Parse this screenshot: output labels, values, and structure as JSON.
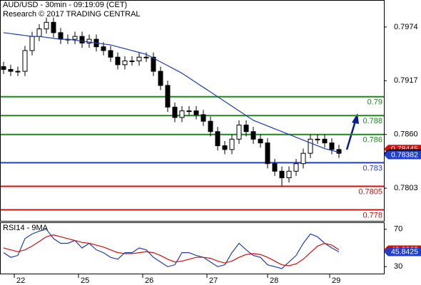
{
  "chart_data": [
    {
      "type": "candlestick",
      "title": "AUD/USD - 30min - 09:19:09 (CET)",
      "subtitle": "Research © 2017 TRADING CENTRAL",
      "x": [
        0,
        1,
        2,
        3,
        4,
        5,
        6,
        7,
        8,
        9,
        10,
        11,
        12,
        13,
        14,
        15,
        16,
        17,
        18,
        19,
        20,
        21,
        22,
        23,
        24,
        25,
        26,
        27,
        28,
        29,
        30,
        31,
        32,
        33,
        34,
        35,
        36,
        37,
        38,
        39,
        40,
        41,
        42,
        43,
        44,
        45,
        46,
        47
      ],
      "open": [
        0.7932,
        0.7929,
        0.7927,
        0.7927,
        0.7949,
        0.7964,
        0.7972,
        0.7979,
        0.7968,
        0.7961,
        0.7961,
        0.7964,
        0.7957,
        0.7961,
        0.7953,
        0.7949,
        0.7942,
        0.7934,
        0.7938,
        0.7938,
        0.7942,
        0.7942,
        0.7927,
        0.7912,
        0.7889,
        0.7878,
        0.7885,
        0.7885,
        0.7881,
        0.7874,
        0.7863,
        0.7848,
        0.7844,
        0.7855,
        0.787,
        0.7863,
        0.7855,
        0.7851,
        0.7829,
        0.7821,
        0.7814,
        0.7821,
        0.7829,
        0.784,
        0.7855,
        0.7855,
        0.7851,
        0.7844
      ],
      "high": [
        0.7937,
        0.7934,
        0.7932,
        0.7954,
        0.7969,
        0.7977,
        0.7984,
        0.7984,
        0.7973,
        0.7966,
        0.7969,
        0.7969,
        0.7966,
        0.7966,
        0.7958,
        0.7954,
        0.7947,
        0.7943,
        0.7943,
        0.7947,
        0.7947,
        0.7947,
        0.7932,
        0.7917,
        0.7894,
        0.789,
        0.789,
        0.789,
        0.7886,
        0.7879,
        0.7868,
        0.7853,
        0.786,
        0.7875,
        0.7875,
        0.7868,
        0.786,
        0.7856,
        0.7834,
        0.7826,
        0.7826,
        0.7834,
        0.7845,
        0.786,
        0.786,
        0.786,
        0.7856,
        0.7849
      ],
      "low": [
        0.7924,
        0.7922,
        0.7922,
        0.7922,
        0.7944,
        0.7959,
        0.7967,
        0.7963,
        0.7956,
        0.7956,
        0.7956,
        0.7952,
        0.7952,
        0.7948,
        0.7944,
        0.7937,
        0.7929,
        0.7929,
        0.7933,
        0.7933,
        0.7937,
        0.7922,
        0.7907,
        0.7884,
        0.7873,
        0.7873,
        0.788,
        0.7876,
        0.7869,
        0.7858,
        0.7843,
        0.7839,
        0.7839,
        0.785,
        0.7858,
        0.785,
        0.7846,
        0.7824,
        0.7816,
        0.7805,
        0.7809,
        0.7816,
        0.7824,
        0.7835,
        0.785,
        0.7846,
        0.7839,
        0.7835
      ],
      "close": [
        0.7929,
        0.7927,
        0.7927,
        0.7949,
        0.7964,
        0.7972,
        0.7979,
        0.7968,
        0.7961,
        0.7961,
        0.7964,
        0.7957,
        0.7961,
        0.7953,
        0.7949,
        0.7942,
        0.7934,
        0.7938,
        0.7938,
        0.7942,
        0.7942,
        0.7927,
        0.7912,
        0.7889,
        0.7878,
        0.7885,
        0.7885,
        0.7881,
        0.7874,
        0.7863,
        0.7848,
        0.7844,
        0.7855,
        0.787,
        0.7863,
        0.7855,
        0.7851,
        0.7829,
        0.7821,
        0.7814,
        0.7821,
        0.7829,
        0.784,
        0.7855,
        0.7855,
        0.7851,
        0.7844,
        0.784
      ],
      "series": [
        {
          "color": "#1f3fa8",
          "values": [
            0.7968,
            0.7967,
            0.7966,
            0.7965,
            0.7964,
            0.7964,
            0.7963,
            0.7962,
            0.7961,
            0.7961,
            0.796,
            0.7959,
            0.7958,
            0.7957,
            0.7956,
            0.7955,
            0.7953,
            0.7951,
            0.7949,
            0.7947,
            0.7945,
            0.7941,
            0.7937,
            0.7933,
            0.7929,
            0.7925,
            0.792,
            0.7915,
            0.791,
            0.7905,
            0.79,
            0.7895,
            0.789,
            0.7885,
            0.788,
            0.7875,
            0.7872,
            0.7869,
            0.7866,
            0.7863,
            0.786,
            0.7857,
            0.7854,
            0.7851,
            0.7848,
            0.7845,
            0.7843,
            0.7841
          ]
        }
      ],
      "levels": [
        {
          "value": 0.79,
          "color": "#1a8a1a"
        },
        {
          "value": 0.788,
          "color": "#1a8a1a"
        },
        {
          "value": 0.786,
          "color": "#1a8a1a"
        },
        {
          "value": 0.783,
          "color": "#1f3fd0"
        },
        {
          "value": 0.7805,
          "color": "#d01010"
        },
        {
          "value": 0.778,
          "color": "#d01010"
        }
      ],
      "price_tags": [
        {
          "value": 0.78445,
          "color": "#d01010"
        },
        {
          "value": 0.78397,
          "color": "#000000"
        },
        {
          "value": 0.78382,
          "color": "#1f3fd0"
        }
      ],
      "xlim": [
        -0.5,
        53.3
      ],
      "ylim": [
        0.77683,
        0.80019
      ],
      "yticks": [
        0.7974,
        0.7917,
        {
          "value": 0.786,
          "label": "0.7860"
        },
        0.7803
      ],
      "xticks": [
        {
          "value": 1.5,
          "label": "22"
        },
        {
          "value": 10.5,
          "label": "25"
        },
        {
          "value": 19.5,
          "label": "26"
        },
        {
          "value": 28.5,
          "label": "27"
        },
        {
          "value": 37,
          "label": "28"
        },
        {
          "value": 45.7,
          "label": "29"
        }
      ]
    },
    {
      "type": "line",
      "title": "RSI14 - 9MA",
      "x": [
        0,
        1,
        2,
        3,
        4,
        5,
        6,
        7,
        8,
        9,
        10,
        11,
        12,
        13,
        14,
        15,
        16,
        17,
        18,
        19,
        20,
        21,
        22,
        23,
        24,
        25,
        26,
        27,
        28,
        29,
        30,
        31,
        32,
        33,
        34,
        35,
        36,
        37,
        38,
        39,
        40,
        41,
        42,
        43,
        44,
        45,
        46,
        47
      ],
      "series": [
        {
          "color": "#1f3fa8",
          "values": [
            45,
            40,
            42,
            60,
            65,
            68,
            70,
            60,
            55,
            55,
            58,
            50,
            55,
            48,
            45,
            40,
            38,
            45,
            45,
            50,
            48,
            40,
            35,
            30,
            32,
            45,
            45,
            42,
            40,
            35,
            30,
            32,
            45,
            55,
            48,
            42,
            40,
            32,
            30,
            28,
            35,
            42,
            55,
            65,
            62,
            55,
            50,
            45.8425
          ]
        },
        {
          "color": "#d01010",
          "values": [
            50,
            48,
            46,
            48,
            52,
            57,
            62,
            64,
            62,
            60,
            58,
            56,
            55,
            53,
            51,
            48,
            45,
            44,
            44,
            45,
            46,
            45,
            42,
            38,
            35,
            36,
            38,
            40,
            40,
            39,
            36,
            34,
            36,
            40,
            43,
            44,
            43,
            40,
            36,
            32,
            31,
            33,
            38,
            45,
            52,
            55,
            53,
            48.0865
          ]
        }
      ],
      "price_tags": [
        {
          "value": 48.0865,
          "color": "#d01010"
        },
        {
          "value": 45.8425,
          "color": "#1f3fd0"
        }
      ],
      "xlim": [
        -0.5,
        53.3
      ],
      "ylim": [
        22.6,
        76.7
      ],
      "yticks": [
        70,
        30
      ]
    }
  ]
}
